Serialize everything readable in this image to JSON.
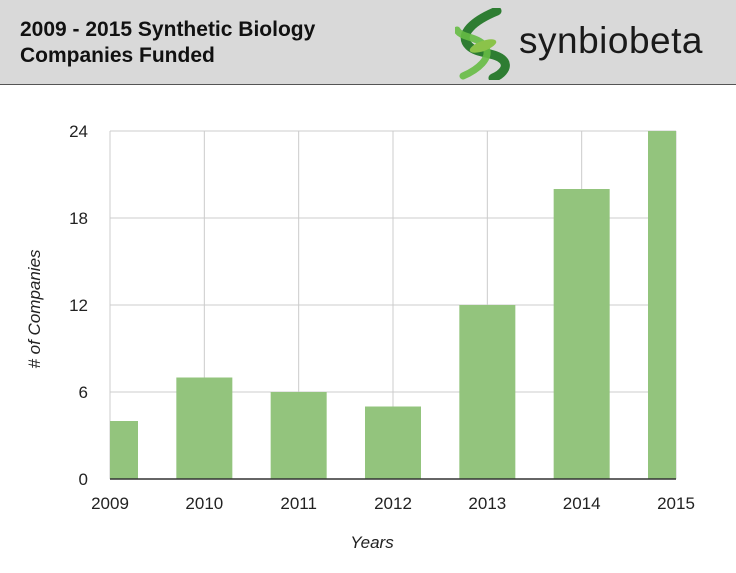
{
  "header": {
    "title_line1": "2009 - 2015 Synthetic Biology",
    "title_line2": "Companies Funded",
    "logo_text": "synbiobeta",
    "logo_icon": "double-helix-icon",
    "background": "#d9d9d9"
  },
  "chart_data": {
    "type": "bar",
    "categories": [
      "2009",
      "2010",
      "2011",
      "2012",
      "2013",
      "2014",
      "2015"
    ],
    "values": [
      4,
      7,
      6,
      5,
      12,
      20,
      24
    ],
    "xlabel": "Years",
    "ylabel": "# of Companies",
    "ylim": [
      0,
      24
    ],
    "yticks": [
      0,
      6,
      12,
      18,
      24
    ],
    "grid": true,
    "bar_color": "#93c47d",
    "grid_color": "#cccccc"
  }
}
